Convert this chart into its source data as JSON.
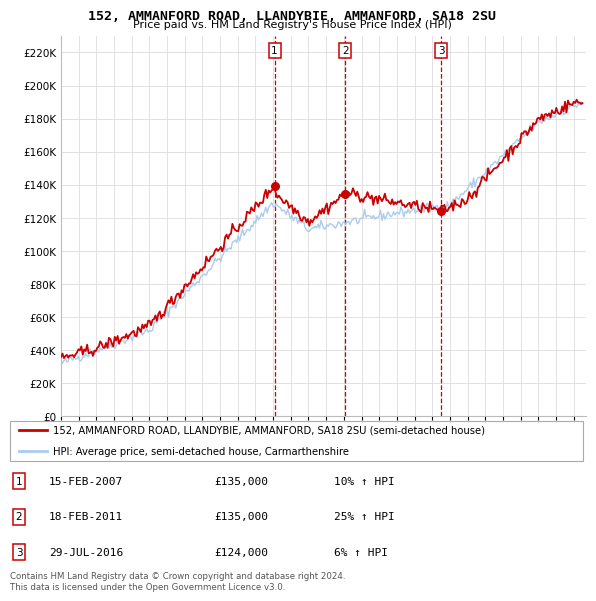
{
  "title": "152, AMMANFORD ROAD, LLANDYBIE, AMMANFORD, SA18 2SU",
  "subtitle": "Price paid vs. HM Land Registry's House Price Index (HPI)",
  "ylim": [
    0,
    230000
  ],
  "yticks": [
    0,
    20000,
    40000,
    60000,
    80000,
    100000,
    120000,
    140000,
    160000,
    180000,
    200000,
    220000
  ],
  "ytick_labels": [
    "£0",
    "£20K",
    "£40K",
    "£60K",
    "£80K",
    "£100K",
    "£120K",
    "£140K",
    "£160K",
    "£180K",
    "£200K",
    "£220K"
  ],
  "legend_line1": "152, AMMANFORD ROAD, LLANDYBIE, AMMANFORD, SA18 2SU (semi-detached house)",
  "legend_line2": "HPI: Average price, semi-detached house, Carmarthenshire",
  "purchase_markers": [
    {
      "label": "1",
      "year": 2007,
      "month": 2,
      "price": 135000
    },
    {
      "label": "2",
      "year": 2011,
      "month": 2,
      "price": 135000
    },
    {
      "label": "3",
      "year": 2016,
      "month": 7,
      "price": 124000
    }
  ],
  "table_rows": [
    {
      "num": "1",
      "date": "15-FEB-2007",
      "price": "£135,000",
      "change": "10% ↑ HPI"
    },
    {
      "num": "2",
      "date": "18-FEB-2011",
      "price": "£135,000",
      "change": "25% ↑ HPI"
    },
    {
      "num": "3",
      "date": "29-JUL-2016",
      "price": "£124,000",
      "change": "6% ↑ HPI"
    }
  ],
  "footer": "Contains HM Land Registry data © Crown copyright and database right 2024.\nThis data is licensed under the Open Government Licence v3.0.",
  "property_line_color": "#cc0000",
  "hpi_line_color": "#aaccee",
  "vline_color": "#cc0000",
  "grid_color": "#dddddd"
}
